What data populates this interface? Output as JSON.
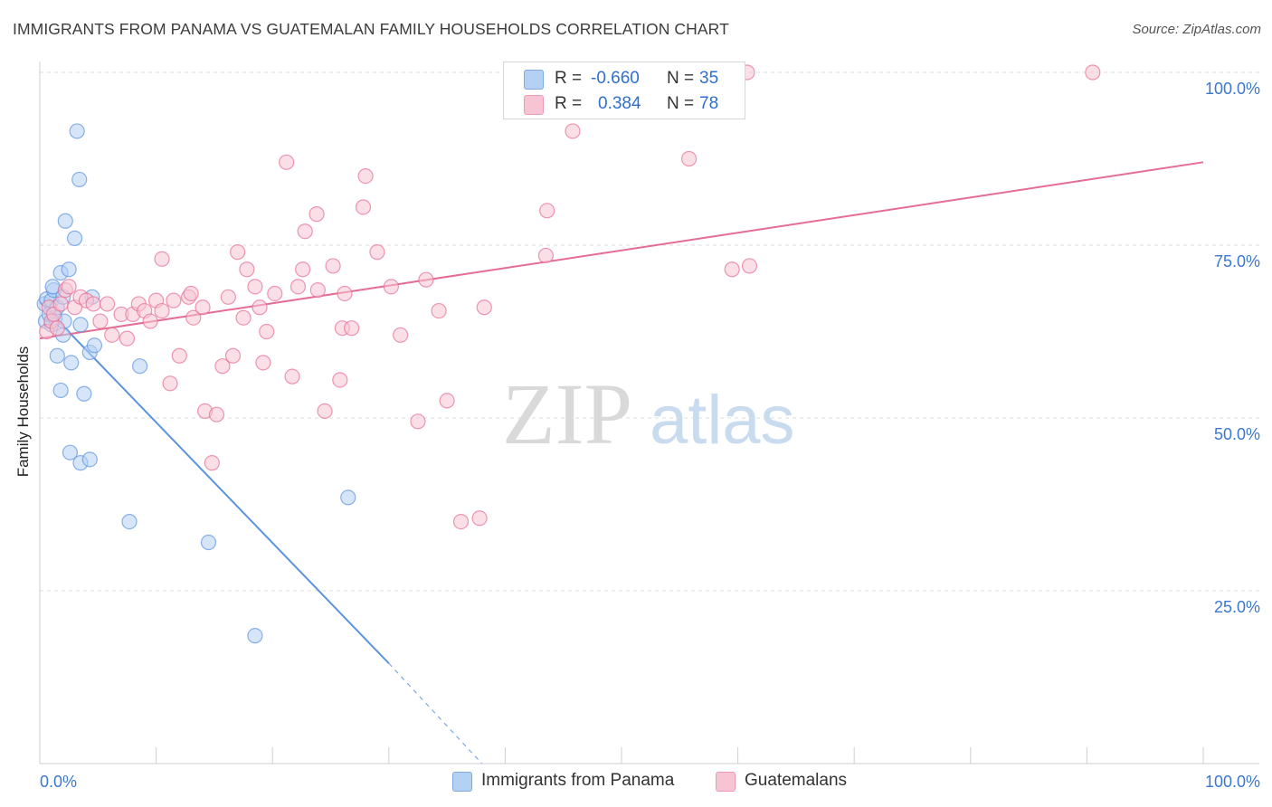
{
  "header": {
    "title": "IMMIGRANTS FROM PANAMA VS GUATEMALAN FAMILY HOUSEHOLDS CORRELATION CHART",
    "source": "Source: ZipAtlas.com"
  },
  "watermark": {
    "zip": "ZIP",
    "atlas": "atlas"
  },
  "legend": {
    "rows": [
      {
        "r_label": "R =",
        "r_value": "-0.660",
        "n_label": "N =",
        "n_value": "35",
        "color": "#a9c9f0"
      },
      {
        "r_label": "R =",
        "r_value": "0.384",
        "n_label": "N =",
        "n_value": "78",
        "color": "#f5b8cc"
      }
    ]
  },
  "bottom_legend": [
    {
      "label": "Immigrants from Panama",
      "color": "#a9c9f0"
    },
    {
      "label": "Guatemalans",
      "color": "#f5b8cc"
    }
  ],
  "chart_data": {
    "type": "scatter",
    "title": "IMMIGRANTS FROM PANAMA VS GUATEMALAN FAMILY HOUSEHOLDS CORRELATION CHART",
    "xlabel": "",
    "ylabel": "Family Households",
    "xlim": [
      0,
      100
    ],
    "ylim": [
      0,
      100
    ],
    "x_tick_labels": [
      "0.0%",
      "100.0%"
    ],
    "y_tick_labels": [
      "25.0%",
      "50.0%",
      "75.0%",
      "100.0%"
    ],
    "y_ticks": [
      25,
      50,
      75,
      100
    ],
    "grid": true,
    "legend_position": "top-center",
    "series": [
      {
        "name": "Immigrants from Panama",
        "color": "#5b93e0",
        "fill": "#b4d0f2",
        "points": [
          [
            0.4,
            66.5
          ],
          [
            0.5,
            64.0
          ],
          [
            0.6,
            67.2
          ],
          [
            0.8,
            65.0
          ],
          [
            1.0,
            67.0
          ],
          [
            1.0,
            63.5
          ],
          [
            1.2,
            68.5
          ],
          [
            1.3,
            64.5
          ],
          [
            1.5,
            66.0
          ],
          [
            1.5,
            59.0
          ],
          [
            1.8,
            71.0
          ],
          [
            1.8,
            54.0
          ],
          [
            2.0,
            67.5
          ],
          [
            2.0,
            62.0
          ],
          [
            2.1,
            64.0
          ],
          [
            2.2,
            78.5
          ],
          [
            2.5,
            71.5
          ],
          [
            2.6,
            45.0
          ],
          [
            2.7,
            58.0
          ],
          [
            3.0,
            76.0
          ],
          [
            3.2,
            91.5
          ],
          [
            3.4,
            84.5
          ],
          [
            3.5,
            43.5
          ],
          [
            3.5,
            63.5
          ],
          [
            3.8,
            53.5
          ],
          [
            4.3,
            44.0
          ],
          [
            4.3,
            59.5
          ],
          [
            4.5,
            67.5
          ],
          [
            4.7,
            60.5
          ],
          [
            7.7,
            35.0
          ],
          [
            8.6,
            57.5
          ],
          [
            14.5,
            32.0
          ],
          [
            18.5,
            18.5
          ],
          [
            26.5,
            38.5
          ],
          [
            1.1,
            69.0
          ]
        ],
        "trend": {
          "x": [
            0,
            30
          ],
          "y": [
            66.8,
            14.5
          ],
          "dashed_to": [
            38,
            0
          ]
        }
      },
      {
        "name": "Guatemalans",
        "color": "#e56c94",
        "fill": "#f7c4d4",
        "points": [
          [
            0.6,
            62.5
          ],
          [
            0.8,
            66.0
          ],
          [
            1.0,
            64.0
          ],
          [
            1.2,
            65.0
          ],
          [
            1.5,
            63.0
          ],
          [
            1.8,
            66.5
          ],
          [
            2.2,
            68.5
          ],
          [
            2.5,
            69.0
          ],
          [
            3.0,
            66.0
          ],
          [
            3.5,
            67.5
          ],
          [
            4.0,
            67.0
          ],
          [
            4.6,
            66.5
          ],
          [
            5.2,
            64.0
          ],
          [
            5.8,
            66.5
          ],
          [
            6.2,
            62.0
          ],
          [
            7.0,
            65.0
          ],
          [
            7.5,
            61.5
          ],
          [
            8.0,
            65.0
          ],
          [
            8.5,
            66.5
          ],
          [
            9.0,
            65.5
          ],
          [
            9.5,
            64.0
          ],
          [
            10.0,
            67.0
          ],
          [
            10.5,
            65.5
          ],
          [
            10.5,
            73.0
          ],
          [
            11.2,
            55.0
          ],
          [
            11.5,
            67.0
          ],
          [
            12.0,
            59.0
          ],
          [
            12.8,
            67.5
          ],
          [
            13.0,
            68.0
          ],
          [
            13.2,
            64.5
          ],
          [
            14.0,
            66.0
          ],
          [
            14.2,
            51.0
          ],
          [
            14.8,
            43.5
          ],
          [
            15.2,
            50.5
          ],
          [
            15.7,
            57.5
          ],
          [
            16.2,
            67.5
          ],
          [
            16.6,
            59.0
          ],
          [
            17.0,
            74.0
          ],
          [
            17.5,
            64.5
          ],
          [
            17.8,
            71.5
          ],
          [
            18.5,
            69.0
          ],
          [
            18.9,
            66.0
          ],
          [
            19.2,
            58.0
          ],
          [
            19.5,
            62.5
          ],
          [
            20.2,
            68.0
          ],
          [
            21.2,
            87.0
          ],
          [
            21.7,
            56.0
          ],
          [
            22.2,
            69.0
          ],
          [
            22.6,
            71.5
          ],
          [
            22.8,
            77.0
          ],
          [
            23.8,
            79.5
          ],
          [
            23.9,
            68.5
          ],
          [
            24.5,
            51.0
          ],
          [
            25.2,
            72.0
          ],
          [
            25.8,
            55.5
          ],
          [
            26.0,
            63.0
          ],
          [
            26.2,
            68.0
          ],
          [
            26.8,
            63.0
          ],
          [
            27.8,
            80.5
          ],
          [
            28.0,
            85.0
          ],
          [
            29.0,
            74.0
          ],
          [
            30.2,
            69.0
          ],
          [
            31.0,
            62.0
          ],
          [
            32.5,
            49.5
          ],
          [
            33.2,
            70.0
          ],
          [
            34.3,
            65.5
          ],
          [
            35.0,
            52.5
          ],
          [
            36.2,
            35.0
          ],
          [
            37.8,
            35.5
          ],
          [
            38.2,
            66.0
          ],
          [
            43.5,
            73.5
          ],
          [
            43.6,
            80.0
          ],
          [
            45.8,
            91.5
          ],
          [
            55.8,
            87.5
          ],
          [
            59.5,
            71.5
          ],
          [
            61.0,
            72.0
          ],
          [
            60.8,
            100.0
          ],
          [
            90.5,
            100.0
          ]
        ],
        "trend": {
          "x": [
            0,
            100
          ],
          "y": [
            61.5,
            87.0
          ]
        }
      }
    ]
  }
}
